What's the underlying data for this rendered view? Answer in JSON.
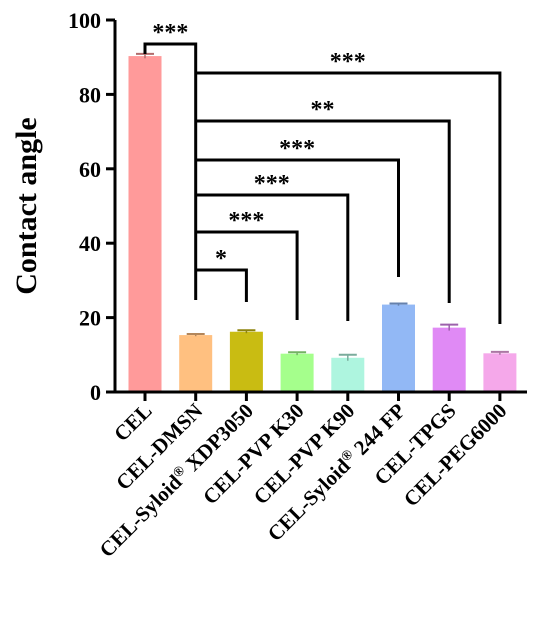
{
  "chart_data": {
    "type": "bar",
    "title": "",
    "xlabel": "",
    "ylabel": "Contact angle",
    "ylim": [
      0,
      100
    ],
    "yticks": [
      0,
      20,
      40,
      60,
      80,
      100
    ],
    "grid": false,
    "legend": "none",
    "categories": [
      "CEL",
      "CEL-DMSN",
      "CEL-Syloid® XDP3050",
      "CEL-PVP K30",
      "CEL-PVP K90",
      "CEL-Syloid® 244 FP",
      "CEL-TPGS",
      "CEL-PEG6000"
    ],
    "values": [
      90.3,
      15.3,
      16.2,
      10.3,
      9.2,
      23.5,
      17.3,
      10.4
    ],
    "errors": [
      0.6,
      0.3,
      0.4,
      0.4,
      0.8,
      0.3,
      0.8,
      0.4
    ],
    "colors": [
      "#ff9a9a",
      "#ffc080",
      "#c9bc12",
      "#a5ff8c",
      "#aef5df",
      "#92b8f5",
      "#e08af5",
      "#f5a8ea"
    ],
    "significance": [
      {
        "from": "CEL",
        "to": "CEL-DMSN",
        "label": "***"
      },
      {
        "from": "CEL-DMSN",
        "to": "CEL-Syloid® XDP3050",
        "label": "*"
      },
      {
        "from": "CEL-DMSN",
        "to": "CEL-PVP K30",
        "label": "***"
      },
      {
        "from": "CEL-DMSN",
        "to": "CEL-PVP K90",
        "label": "***"
      },
      {
        "from": "CEL-DMSN",
        "to": "CEL-Syloid® 244 FP",
        "label": "***"
      },
      {
        "from": "CEL-DMSN",
        "to": "CEL-TPGS",
        "label": "**"
      },
      {
        "from": "CEL-DMSN",
        "to": "CEL-PEG6000",
        "label": "***"
      }
    ]
  }
}
